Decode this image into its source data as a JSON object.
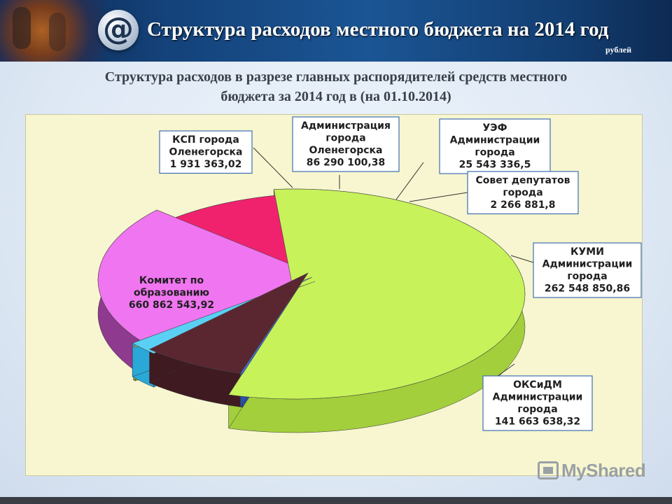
{
  "header": {
    "title": "Структура расходов местного бюджета на 2014 год",
    "units": "рублей",
    "logo_glyph": "@"
  },
  "subtitle_line1": "Структура расходов в разрезе главных распорядителей средств местного",
  "subtitle_line2": "бюджета за 2014 год в (на 01.10.2014)",
  "watermark": "MyShared",
  "chart_data": {
    "type": "pie",
    "title": "",
    "slices": [
      {
        "label_lines": [
          "Комитет по",
          "образованию",
          "660 862 543,92"
        ],
        "value": 660862543.92,
        "color": "#c8f25a",
        "side": "#a3cf3c"
      },
      {
        "label_lines": [
          "КСП города",
          "Оленегорска",
          "1 931 363,02"
        ],
        "value": 1931363.02,
        "color": "#3d6fd6",
        "side": "#2a52a8"
      },
      {
        "label_lines": [
          "Администрация",
          "города",
          "Оленегорска",
          "86 290 100,38"
        ],
        "value": 86290100.38,
        "color": "#5a2730",
        "side": "#3f1a21"
      },
      {
        "label_lines": [
          "УЭФ",
          "Администрации",
          "города",
          "25 543 336,5"
        ],
        "value": 25543336.5,
        "color": "#5bd0f5",
        "side": "#2aa8d8"
      },
      {
        "label_lines": [
          "Совет депутатов",
          "города",
          "2 266 881,8"
        ],
        "value": 2266881.8,
        "color": "#b9d64e",
        "side": "#94b232"
      },
      {
        "label_lines": [
          "КУМИ",
          "Администрации",
          "города",
          "262 548 850,86"
        ],
        "value": 262548850.86,
        "color": "#f075f0",
        "side": "#8e3a8e"
      },
      {
        "label_lines": [
          "ОКСиДМ",
          "Администрации",
          "города",
          "141 663 638,32"
        ],
        "value": 141663638.32,
        "color": "#f0226e",
        "side": "#7e0f33"
      }
    ]
  }
}
